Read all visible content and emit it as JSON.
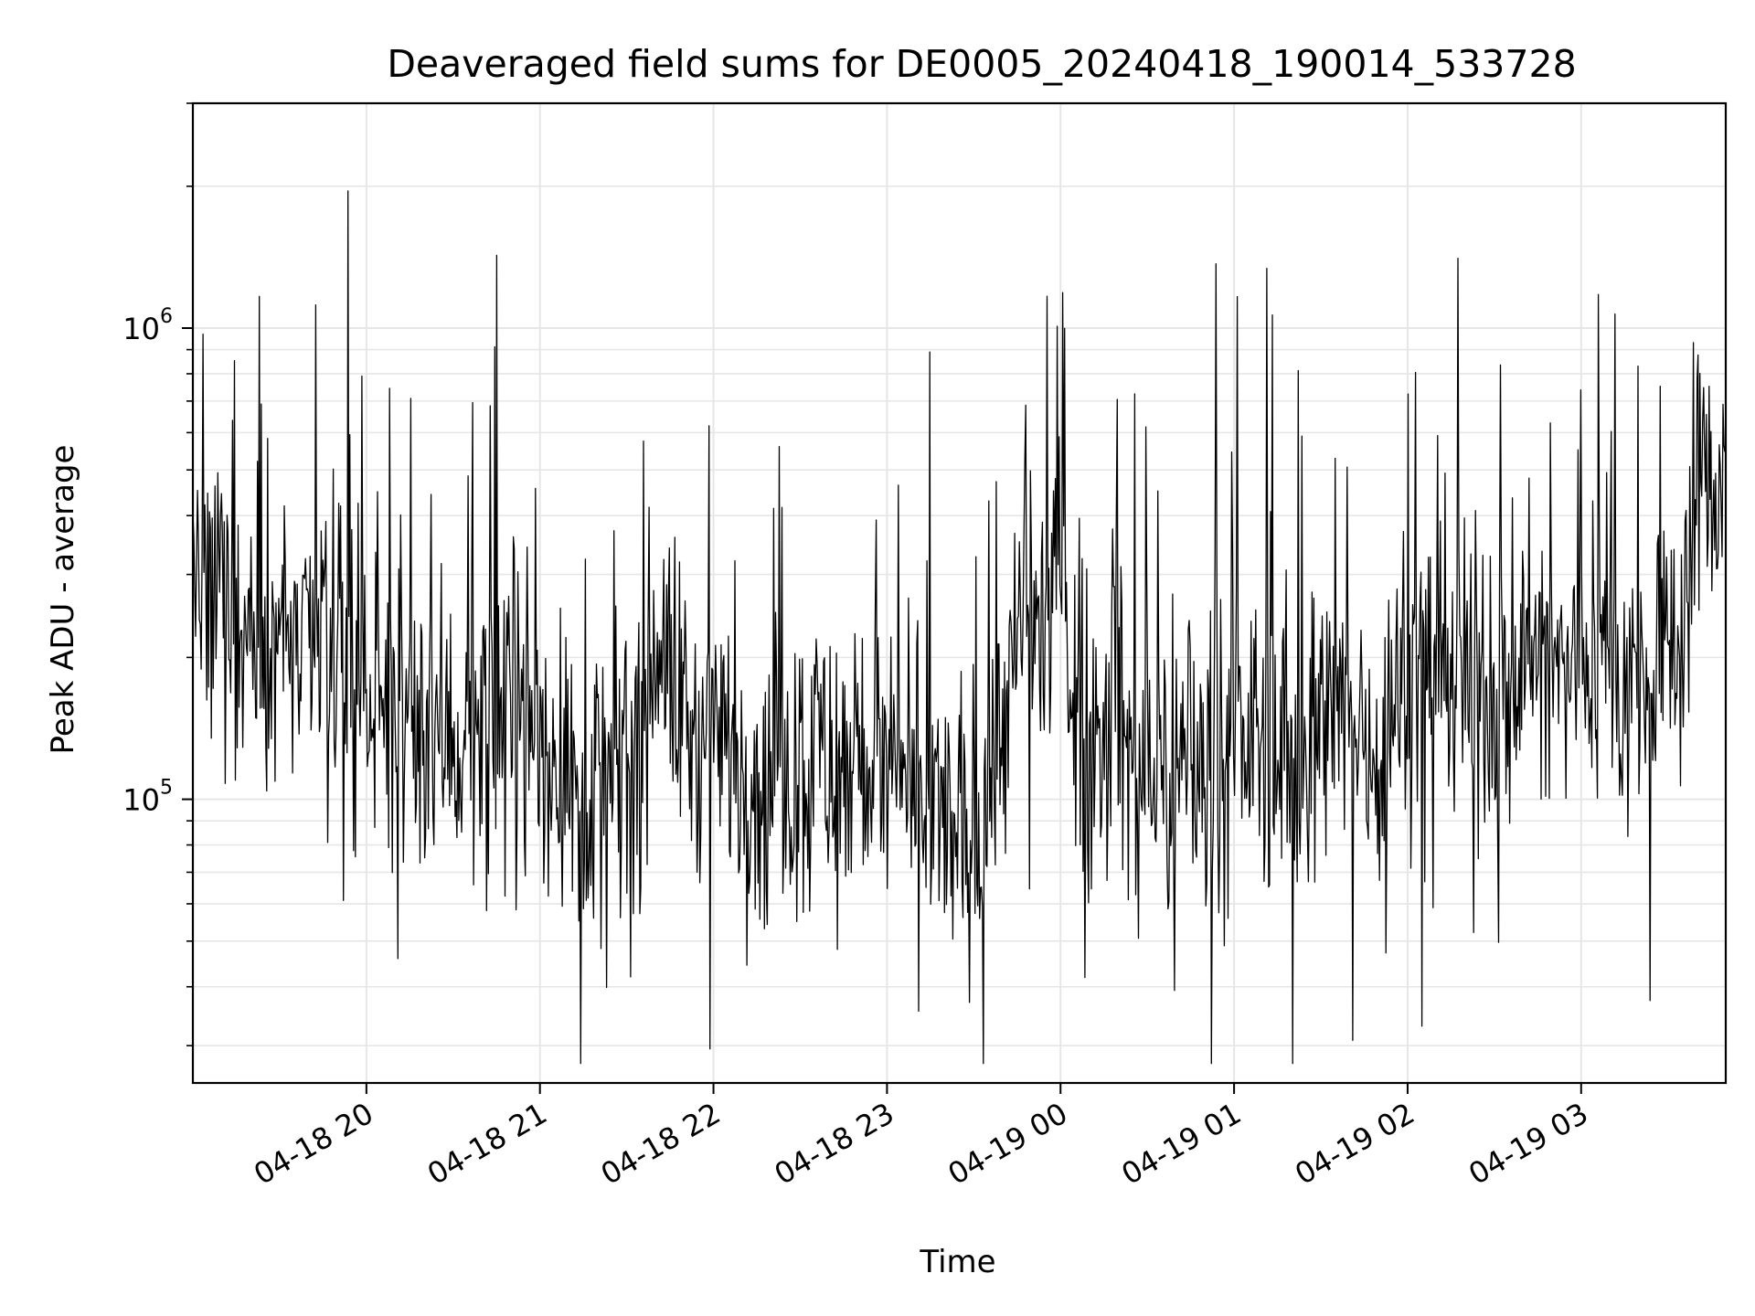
{
  "chart_data": {
    "type": "line",
    "title": "Deaveraged field sums for DE0005_20240418_190014_533728",
    "xlabel": "Time",
    "ylabel": "Peak ADU - average",
    "yscale": "log",
    "grid": true,
    "x_range": [
      "2024-04-18 19:00",
      "2024-04-19 03:50"
    ],
    "ylim": [
      25000,
      3000000
    ],
    "x_ticks": [
      {
        "value": "2024-04-18 20:00",
        "label": "04-18 20"
      },
      {
        "value": "2024-04-18 21:00",
        "label": "04-18 21"
      },
      {
        "value": "2024-04-18 22:00",
        "label": "04-18 22"
      },
      {
        "value": "2024-04-18 23:00",
        "label": "04-18 23"
      },
      {
        "value": "2024-04-19 00:00",
        "label": "04-19 00"
      },
      {
        "value": "2024-04-19 01:00",
        "label": "04-19 01"
      },
      {
        "value": "2024-04-19 02:00",
        "label": "04-19 02"
      },
      {
        "value": "2024-04-19 03:00",
        "label": "04-19 03"
      }
    ],
    "y_ticks": [
      {
        "value": 100000,
        "base": "10",
        "exp": "5"
      },
      {
        "value": 1000000,
        "base": "10",
        "exp": "6"
      }
    ],
    "series": [
      {
        "color": "#000000",
        "x": [
          "2024-04-18 19:00",
          "2024-04-18 19:05",
          "2024-04-18 19:10",
          "2024-04-18 19:15",
          "2024-04-18 19:20",
          "2024-04-18 19:25",
          "2024-04-18 19:30",
          "2024-04-18 19:35",
          "2024-04-18 19:40",
          "2024-04-18 19:45",
          "2024-04-18 19:50",
          "2024-04-18 19:55",
          "2024-04-18 20:00",
          "2024-04-18 20:05",
          "2024-04-18 20:10",
          "2024-04-18 20:15",
          "2024-04-18 20:20",
          "2024-04-18 20:25",
          "2024-04-18 20:30",
          "2024-04-18 20:35",
          "2024-04-18 20:40",
          "2024-04-18 20:45",
          "2024-04-18 20:50",
          "2024-04-18 20:55",
          "2024-04-18 21:00",
          "2024-04-18 21:05",
          "2024-04-18 21:10",
          "2024-04-18 21:15",
          "2024-04-18 21:20",
          "2024-04-18 21:25",
          "2024-04-18 21:30",
          "2024-04-18 21:35",
          "2024-04-18 21:40",
          "2024-04-18 21:45",
          "2024-04-18 21:50",
          "2024-04-18 21:55",
          "2024-04-18 22:00",
          "2024-04-18 22:05",
          "2024-04-18 22:10",
          "2024-04-18 22:15",
          "2024-04-18 22:20",
          "2024-04-18 22:25",
          "2024-04-18 22:30",
          "2024-04-18 22:35",
          "2024-04-18 22:40",
          "2024-04-18 22:45",
          "2024-04-18 22:50",
          "2024-04-18 22:55",
          "2024-04-18 23:00",
          "2024-04-18 23:05",
          "2024-04-18 23:10",
          "2024-04-18 23:15",
          "2024-04-18 23:20",
          "2024-04-18 23:25",
          "2024-04-18 23:30",
          "2024-04-18 23:35",
          "2024-04-18 23:40",
          "2024-04-18 23:45",
          "2024-04-18 23:50",
          "2024-04-18 23:55",
          "2024-04-19 00:00",
          "2024-04-19 00:05",
          "2024-04-19 00:10",
          "2024-04-19 00:15",
          "2024-04-19 00:20",
          "2024-04-19 00:25",
          "2024-04-19 00:30",
          "2024-04-19 00:35",
          "2024-04-19 00:40",
          "2024-04-19 00:45",
          "2024-04-19 00:50",
          "2024-04-19 00:55",
          "2024-04-19 01:00",
          "2024-04-19 01:05",
          "2024-04-19 01:10",
          "2024-04-19 01:15",
          "2024-04-19 01:20",
          "2024-04-19 01:25",
          "2024-04-19 01:30",
          "2024-04-19 01:35",
          "2024-04-19 01:40",
          "2024-04-19 01:45",
          "2024-04-19 01:50",
          "2024-04-19 01:55",
          "2024-04-19 02:00",
          "2024-04-19 02:05",
          "2024-04-19 02:10",
          "2024-04-19 02:15",
          "2024-04-19 02:20",
          "2024-04-19 02:25",
          "2024-04-19 02:30",
          "2024-04-19 02:35",
          "2024-04-19 02:40",
          "2024-04-19 02:45",
          "2024-04-19 02:50",
          "2024-04-19 02:55",
          "2024-04-19 03:00",
          "2024-04-19 03:05",
          "2024-04-19 03:10",
          "2024-04-19 03:15",
          "2024-04-19 03:20",
          "2024-04-19 03:25",
          "2024-04-19 03:30",
          "2024-04-19 03:35",
          "2024-04-19 03:40",
          "2024-04-19 03:45",
          "2024-04-19 03:50"
        ],
        "y": [
          280000,
          220000,
          300000,
          240000,
          230000,
          200000,
          250000,
          210000,
          200000,
          230000,
          190000,
          180000,
          170000,
          190000,
          160000,
          150000,
          150000,
          140000,
          140000,
          130000,
          150000,
          140000,
          160000,
          150000,
          140000,
          130000,
          110000,
          100000,
          110000,
          100000,
          120000,
          130000,
          240000,
          180000,
          150000,
          130000,
          120000,
          130000,
          120000,
          110000,
          110000,
          120000,
          120000,
          130000,
          120000,
          110000,
          120000,
          130000,
          110000,
          100000,
          100000,
          90000,
          90000,
          80000,
          85000,
          100000,
          150000,
          200000,
          250000,
          220000,
          300000,
          180000,
          120000,
          150000,
          180000,
          110000,
          100000,
          120000,
          110000,
          130000,
          120000,
          130000,
          120000,
          140000,
          130000,
          140000,
          120000,
          130000,
          150000,
          140000,
          150000,
          140000,
          130000,
          150000,
          200000,
          200000,
          210000,
          190000,
          180000,
          170000,
          160000,
          180000,
          190000,
          200000,
          190000,
          180000,
          210000,
          220000,
          200000,
          180000,
          170000,
          160000,
          200000,
          250000,
          450000,
          480000,
          520000
        ]
      }
    ]
  }
}
